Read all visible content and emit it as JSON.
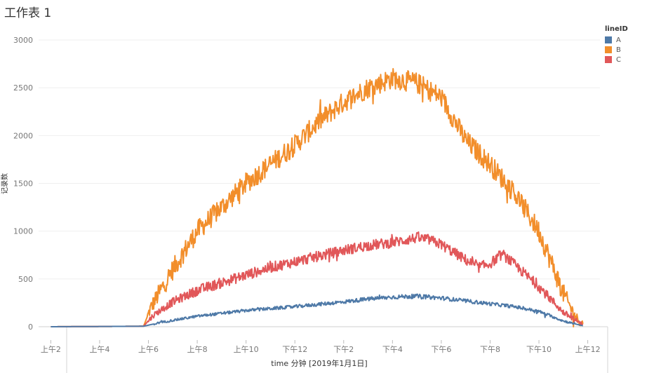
{
  "sheet": {
    "title": "工作表 1"
  },
  "chart_data": {
    "type": "line",
    "title": "工作表 1",
    "xlabel": "time 分钟 [2019年1月1日]",
    "ylabel": "记录数",
    "ylim": [
      0,
      3000
    ],
    "xlim": [
      1.5,
      24.5
    ],
    "yticks": [
      0,
      500,
      1000,
      1500,
      2000,
      2500,
      3000
    ],
    "ytick_labels": [
      "0",
      "500",
      "1000",
      "1500",
      "2000",
      "2500",
      "3000"
    ],
    "xticks": [
      2,
      4,
      6,
      8,
      10,
      12,
      14,
      16,
      18,
      20,
      22,
      24
    ],
    "xtick_labels": [
      "上午2",
      "上午4",
      "上午6",
      "上午8",
      "上午10",
      "下午12",
      "下午2",
      "下午4",
      "下午6",
      "下午8",
      "下午10",
      "上午12"
    ],
    "legend": {
      "title": "lineID",
      "position": "top-right"
    },
    "series": [
      {
        "name": "A",
        "color": "#4e79a7",
        "x": [
          2.0,
          5.8,
          6.5,
          8,
          10,
          12,
          14,
          15,
          16,
          17,
          18,
          20,
          21,
          22,
          23,
          23.8
        ],
        "y": [
          0,
          5,
          45,
          110,
          170,
          210,
          260,
          290,
          310,
          320,
          300,
          240,
          210,
          160,
          60,
          10
        ]
      },
      {
        "name": "B",
        "color": "#f28e2b",
        "x": [
          2.0,
          5.8,
          6.1,
          7,
          8,
          9,
          10,
          11,
          12,
          13,
          14,
          15,
          16,
          17,
          18,
          19,
          20,
          21,
          22,
          23,
          23.5,
          23.8
        ],
        "y": [
          0,
          5,
          200,
          600,
          1000,
          1250,
          1500,
          1700,
          1900,
          2150,
          2350,
          2500,
          2600,
          2550,
          2400,
          1950,
          1700,
          1400,
          1000,
          350,
          100,
          30
        ]
      },
      {
        "name": "C",
        "color": "#e15759",
        "x": [
          2.0,
          5.8,
          6.2,
          7,
          8,
          9,
          10,
          11,
          12,
          13,
          14,
          15,
          16,
          17,
          17.5,
          18,
          19,
          19.5,
          20,
          20.5,
          21,
          22,
          23,
          23.8
        ],
        "y": [
          0,
          5,
          120,
          260,
          380,
          460,
          540,
          620,
          680,
          740,
          800,
          850,
          880,
          930,
          910,
          860,
          700,
          620,
          660,
          760,
          650,
          420,
          150,
          20
        ]
      }
    ],
    "noise_amplitude": {
      "A": 25,
      "B": 110,
      "C": 55
    }
  }
}
